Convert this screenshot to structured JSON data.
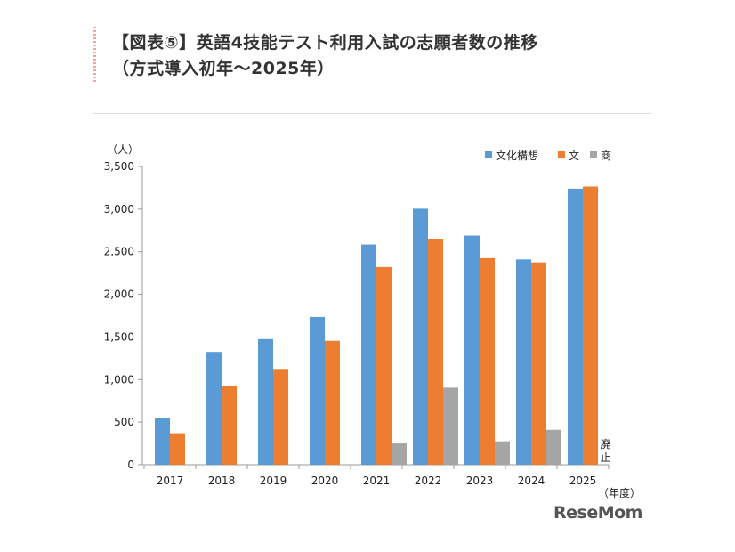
{
  "title_line1": "【図表⑤】英語4技能テスト利用入試の志願者数の推移",
  "title_line2": "（方式導入初年～2025年）",
  "logo": "ReseMom",
  "colors": {
    "s1": "#5b9bd5",
    "s2": "#ed7d31",
    "s3": "#a5a5a5"
  },
  "chart_data": {
    "type": "bar",
    "categories": [
      "2017",
      "2018",
      "2019",
      "2020",
      "2021",
      "2022",
      "2023",
      "2024",
      "2025"
    ],
    "series": [
      {
        "name": "文化構想",
        "values": [
          545,
          1325,
          1475,
          1735,
          2585,
          3005,
          2690,
          2410,
          3240
        ]
      },
      {
        "name": "文",
        "values": [
          370,
          930,
          1115,
          1455,
          2320,
          2645,
          2425,
          2375,
          3265
        ]
      },
      {
        "name": "商",
        "values": [
          null,
          null,
          null,
          null,
          250,
          905,
          275,
          410,
          null
        ]
      }
    ],
    "ylim": [
      0,
      3500
    ],
    "yticks": [
      "0",
      "500",
      "1,000",
      "1,500",
      "2,000",
      "2,500",
      "3,000",
      "3,500"
    ],
    "ylabel": "（人）",
    "xlabel": "（年度）",
    "annotation": "廃止",
    "legend_position": "top-right",
    "grid": false
  }
}
